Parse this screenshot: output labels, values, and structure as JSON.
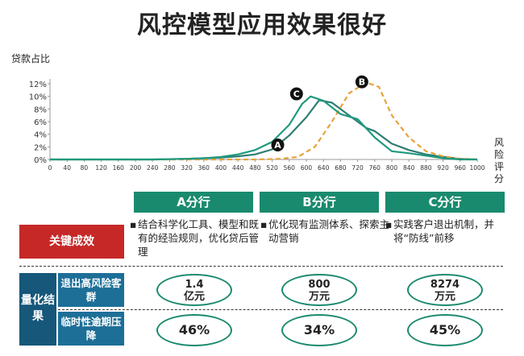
{
  "title": "风控模型应用效果很好",
  "chart_data": {
    "type": "line",
    "ylabel": "贷款占比",
    "xlabel": "风险评分",
    "xlim": [
      0,
      1000
    ],
    "ylim": [
      0,
      12
    ],
    "x_ticks": [
      "0",
      "40",
      "80",
      "120",
      "160",
      "200",
      "240",
      "280",
      "320",
      "360",
      "400",
      "440",
      "480",
      "520",
      "560",
      "600",
      "640",
      "680",
      "720",
      "760",
      "800",
      "840",
      "880",
      "920",
      "960",
      "1000"
    ],
    "y_ticks": [
      "0%",
      "2%",
      "4%",
      "6%",
      "8%",
      "10%",
      "12%"
    ],
    "series": [
      {
        "name": "A",
        "color": "#2e7d73",
        "dashed": false,
        "x": [
          0,
          240,
          320,
          400,
          440,
          480,
          520,
          560,
          600,
          630,
          660,
          700,
          740,
          760,
          800,
          840,
          880,
          920,
          960,
          1000
        ],
        "y": [
          0,
          0,
          0.1,
          0.3,
          0.5,
          0.8,
          1.6,
          3.8,
          6.7,
          9.4,
          9.0,
          7.0,
          5.0,
          4.5,
          2.5,
          1.5,
          0.8,
          0.4,
          0.1,
          0
        ]
      },
      {
        "name": "B",
        "color": "#e6a23c",
        "dashed": true,
        "x": [
          0,
          480,
          540,
          580,
          620,
          660,
          700,
          740,
          770,
          800,
          840,
          880,
          920,
          960,
          1000
        ],
        "y": [
          0,
          0,
          0.1,
          0.4,
          2.0,
          6.0,
          10.5,
          12.2,
          11.5,
          7.0,
          3.5,
          1.3,
          0.5,
          0.1,
          0
        ]
      },
      {
        "name": "C",
        "color": "#1f9a7e",
        "dashed": false,
        "x": [
          0,
          240,
          320,
          360,
          400,
          440,
          480,
          520,
          560,
          590,
          610,
          640,
          680,
          720,
          760,
          800,
          840,
          880,
          920,
          960,
          1000
        ],
        "y": [
          0,
          0,
          0.1,
          0.2,
          0.4,
          0.8,
          1.5,
          2.8,
          5.5,
          8.8,
          10.0,
          9.3,
          7.2,
          6.4,
          3.5,
          1.3,
          1.0,
          0.6,
          0.2,
          0,
          0
        ]
      }
    ],
    "markers": [
      {
        "label": "A",
        "x": 533,
        "y": 2.3
      },
      {
        "label": "C",
        "x": 577,
        "y": 10.4
      },
      {
        "label": "B",
        "x": 730,
        "y": 12.3
      }
    ]
  },
  "branches": [
    {
      "name": "A分行",
      "desc": "结合科学化工具、模型和既有的经验规则，优化贷后管理",
      "m1": "1.4\n亿元",
      "m2": "46%"
    },
    {
      "name": "B分行",
      "desc": "优化现有监测体系、探索主动营销",
      "m1": "800\n万元",
      "m2": "34%"
    },
    {
      "name": "C分行",
      "desc": "实践客户退出机制，并将“防线”前移",
      "m1": "8274\n万元",
      "m2": "45%"
    }
  ],
  "bullet": "▪",
  "key_effect": "关键成效",
  "quant_result": "量化结果",
  "metric1": "退出高风险客群",
  "metric2": "临时性逾期压降"
}
